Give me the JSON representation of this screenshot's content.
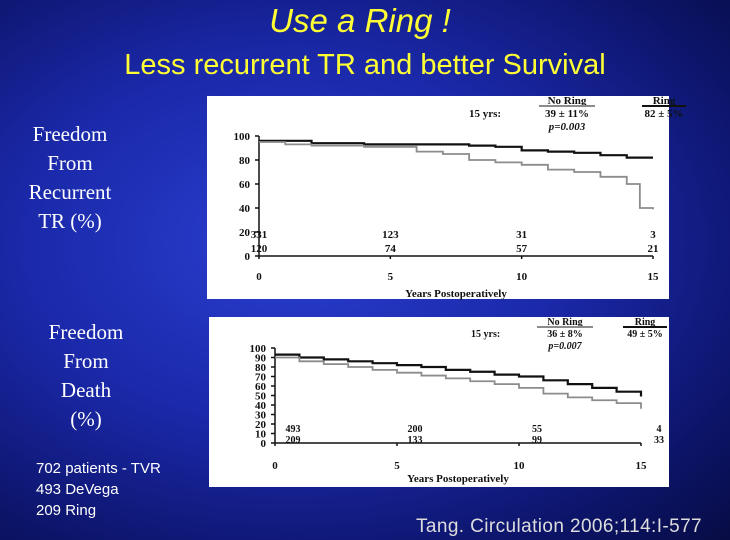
{
  "slide": {
    "title": "Use a Ring !",
    "subtitle": "Less recurrent TR and better Survival",
    "ylabel_top": [
      "Freedom",
      "From",
      "Recurrent",
      "TR (%)"
    ],
    "ylabel_bottom": [
      "Freedom",
      "From",
      "Death",
      "(%)"
    ],
    "patients_note": [
      "702 patients - TVR",
      "493 DeVega",
      "209 Ring"
    ],
    "citation": "Tang. Circulation 2006;114:I-577"
  },
  "colors": {
    "background": "#1a28a8",
    "title": "#ffff33",
    "ring_series": "#111111",
    "no_ring_series": "#8c8c8c"
  },
  "chart_data": [
    {
      "type": "line",
      "title": "",
      "xlabel": "Years Postoperatively",
      "ylabel": "Freedom From Recurrent TR (%)",
      "xlim": [
        0,
        15
      ],
      "ylim": [
        0,
        100
      ],
      "xticks": [
        "0",
        "5",
        "10",
        "15"
      ],
      "yticks": [
        "0",
        "20",
        "40",
        "60",
        "80",
        "100"
      ],
      "grid": false,
      "legend": {
        "header_left": "15 yrs:",
        "pvalue": "p=0.003",
        "entries": [
          {
            "label": "No Ring",
            "value": "39 ± 11%"
          },
          {
            "label": "Ring",
            "value": "82 ± 5%"
          }
        ]
      },
      "at_risk": {
        "x": [
          0,
          5,
          10,
          15
        ],
        "rows": [
          [
            "331",
            "123",
            "31",
            "3"
          ],
          [
            "120",
            "74",
            "57",
            "21"
          ]
        ]
      },
      "series": [
        {
          "name": "Ring",
          "color": "#111111",
          "x": [
            0,
            2,
            4,
            6,
            8,
            9,
            10,
            11,
            12,
            13,
            14,
            15
          ],
          "y": [
            96,
            94,
            93,
            93,
            92,
            91,
            88,
            87,
            86,
            84,
            82,
            82
          ]
        },
        {
          "name": "No Ring",
          "color": "#8c8c8c",
          "x": [
            0,
            1,
            2,
            4,
            6,
            7,
            8,
            9,
            10,
            11,
            12,
            13,
            14,
            14.5,
            15
          ],
          "y": [
            95,
            93,
            92,
            91,
            87,
            85,
            80,
            78,
            76,
            72,
            70,
            66,
            60,
            40,
            39
          ]
        }
      ]
    },
    {
      "type": "line",
      "title": "",
      "xlabel": "Years Postoperatively",
      "ylabel": "Freedom From Death (%)",
      "xlim": [
        0,
        15
      ],
      "ylim": [
        0,
        100
      ],
      "xticks": [
        "0",
        "5",
        "10",
        "15"
      ],
      "yticks": [
        "0",
        "10",
        "20",
        "30",
        "40",
        "50",
        "60",
        "70",
        "80",
        "90",
        "100"
      ],
      "grid": false,
      "legend": {
        "header_left": "15 yrs:",
        "pvalue": "p=0.007",
        "entries": [
          {
            "label": "No Ring",
            "value": "36 ± 8%"
          },
          {
            "label": "Ring",
            "value": "49 ± 5%"
          }
        ]
      },
      "at_risk": {
        "x": [
          0,
          5,
          10,
          15
        ],
        "rows": [
          [
            "493",
            "200",
            "55",
            "4"
          ],
          [
            "209",
            "133",
            "99",
            "33"
          ]
        ]
      },
      "series": [
        {
          "name": "Ring",
          "color": "#111111",
          "x": [
            0,
            1,
            2,
            3,
            4,
            5,
            6,
            7,
            8,
            9,
            10,
            11,
            12,
            13,
            14,
            15
          ],
          "y": [
            93,
            90,
            88,
            86,
            84,
            82,
            80,
            77,
            75,
            72,
            70,
            66,
            62,
            58,
            54,
            49
          ]
        },
        {
          "name": "No Ring",
          "color": "#8c8c8c",
          "x": [
            0,
            1,
            2,
            3,
            4,
            5,
            6,
            7,
            8,
            9,
            10,
            11,
            12,
            13,
            14,
            15
          ],
          "y": [
            90,
            86,
            83,
            80,
            77,
            74,
            71,
            68,
            65,
            62,
            58,
            52,
            48,
            45,
            42,
            36
          ]
        }
      ]
    }
  ]
}
